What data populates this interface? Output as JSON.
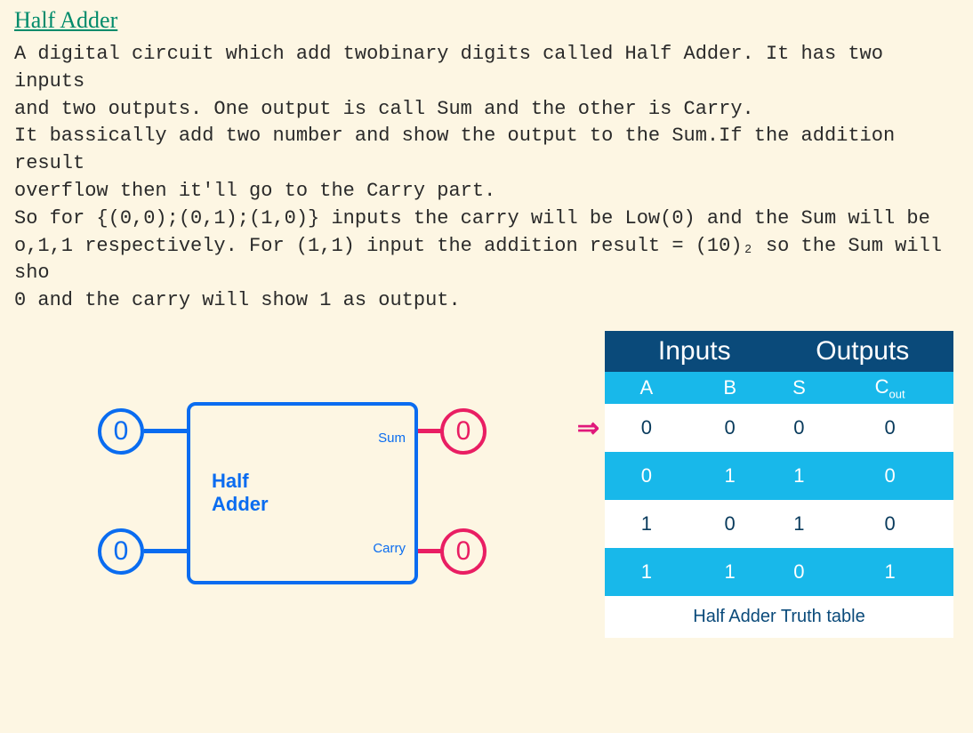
{
  "title": "Half Adder",
  "description": "A digital circuit which add twobinary digits called Half Adder. It has two inputs\nand two outputs. One output is call Sum and the other is Carry.\nIt bassically add two number and show the output to the Sum.If the addition result\noverflow then it'll go to the Carry part.\nSo for {(0,0);(0,1);(1,0)} inputs the carry will be Low(0) and the Sum will be\no,1,1 respectively. For (1,1) input the addition result = (10)₂ so the Sum will sho\n0 and the carry will show 1 as output.",
  "colors": {
    "background": "#fdf6e3",
    "title": "#008b6b",
    "text": "#2a2a2a",
    "block_border": "#0a6cf0",
    "node_blue": "#0a6cf0",
    "node_pink": "#e91e63",
    "table_header_dark": "#0a4a7a",
    "table_header_light": "#18b8ea",
    "table_row_alt": "#18b8ea",
    "table_row_white": "#ffffff",
    "arrow": "#e0187b"
  },
  "diagram": {
    "type": "block-diagram",
    "block_label_line1": "Half",
    "block_label_line2": "Adder",
    "ports": {
      "sum_label": "Sum",
      "carry_label": "Carry"
    },
    "nodes": {
      "input_a": {
        "value": "0",
        "color": "#0a6cf0"
      },
      "input_b": {
        "value": "0",
        "color": "#0a6cf0"
      },
      "output_sum": {
        "value": "0",
        "color": "#e91e63"
      },
      "output_carry": {
        "value": "0",
        "color": "#e91e63"
      }
    },
    "block_border_width": 4,
    "block_border_radius": 10,
    "node_diameter": 52,
    "node_border_width": 4,
    "wire_thickness": 5
  },
  "truth_table": {
    "type": "table",
    "header_groups": {
      "inputs": "Inputs",
      "outputs": "Outputs"
    },
    "columns": {
      "A": "A",
      "B": "B",
      "S": "S",
      "Cout_base": "C",
      "Cout_sub": "out"
    },
    "rows": [
      {
        "A": "0",
        "B": "0",
        "S": "0",
        "Cout": "0",
        "bg": "white"
      },
      {
        "A": "0",
        "B": "1",
        "S": "1",
        "Cout": "0",
        "bg": "blue"
      },
      {
        "A": "1",
        "B": "0",
        "S": "1",
        "Cout": "0",
        "bg": "white"
      },
      {
        "A": "1",
        "B": "1",
        "S": "0",
        "Cout": "1",
        "bg": "blue"
      }
    ],
    "active_row_index": 0,
    "caption": "Half Adder Truth table",
    "header_fontsize": 30,
    "subheader_fontsize": 22,
    "cell_fontsize": 22
  },
  "arrow_glyph": "⇒"
}
